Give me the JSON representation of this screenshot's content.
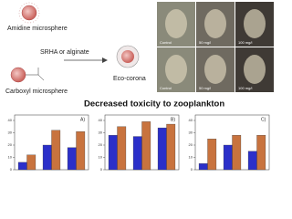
{
  "diagram": {
    "amidine": "Amidine microsphere",
    "agent": "SRHA or alginate",
    "corona": "Eco-corona",
    "carboxyl": "Carboxyl microsphere",
    "headline": "Decreased toxicity to zooplankton"
  },
  "photos": {
    "labels": [
      "Control",
      "50 mg/l",
      "100 mg/l",
      "Control",
      "50 mg/l",
      "100 mg/l"
    ]
  },
  "chart_data": [
    {
      "type": "bar",
      "panel": "A)",
      "categories": [
        null,
        null,
        null
      ],
      "ylim": [
        0,
        40
      ],
      "yticks": [
        0,
        10,
        20,
        30,
        40
      ],
      "series": [
        {
          "color": "#2b2fc9",
          "values": [
            6,
            20,
            18
          ]
        },
        {
          "color": "#c8733e",
          "values": [
            12,
            32,
            31
          ]
        }
      ]
    },
    {
      "type": "bar",
      "panel": "B)",
      "categories": [
        null,
        null,
        null
      ],
      "ylim": [
        0,
        40
      ],
      "yticks": [
        0,
        10,
        20,
        30,
        40
      ],
      "series": [
        {
          "color": "#2b2fc9",
          "values": [
            28,
            27,
            34
          ]
        },
        {
          "color": "#c8733e",
          "values": [
            35,
            39,
            37
          ]
        }
      ]
    },
    {
      "type": "bar",
      "panel": "C)",
      "categories": [
        null,
        null,
        null
      ],
      "ylim": [
        0,
        40
      ],
      "yticks": [
        0,
        10,
        20,
        30,
        40
      ],
      "series": [
        {
          "color": "#2b2fc9",
          "values": [
            5,
            20,
            15
          ]
        },
        {
          "color": "#c8733e",
          "values": [
            25,
            28,
            28
          ]
        }
      ]
    }
  ]
}
